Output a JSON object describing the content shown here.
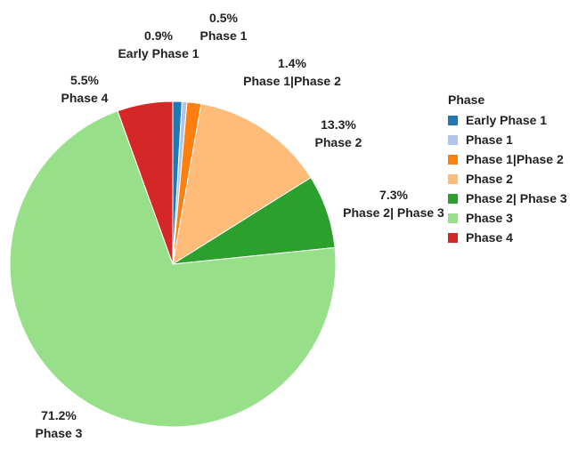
{
  "chart_data": {
    "type": "pie",
    "legend_title": "Phase",
    "legend_placement": "right",
    "slices": [
      {
        "name": "Early Phase 1",
        "percent": 0.9,
        "pct_label": "0.9%",
        "color": "#1f77b4"
      },
      {
        "name": "Phase 1",
        "percent": 0.5,
        "pct_label": "0.5%",
        "color": "#aec7e8"
      },
      {
        "name": "Phase 1|Phase 2",
        "percent": 1.4,
        "pct_label": "1.4%",
        "color": "#ff7f0e"
      },
      {
        "name": "Phase 2",
        "percent": 13.3,
        "pct_label": "13.3%",
        "color": "#ffbb78"
      },
      {
        "name": "Phase 2| Phase 3",
        "percent": 7.3,
        "pct_label": "7.3%",
        "color": "#2ca02c"
      },
      {
        "name": "Phase 3",
        "percent": 71.2,
        "pct_label": "71.2%",
        "color": "#98df8a"
      },
      {
        "name": "Phase 4",
        "percent": 5.5,
        "pct_label": "5.5%",
        "color": "#d62728"
      }
    ]
  }
}
